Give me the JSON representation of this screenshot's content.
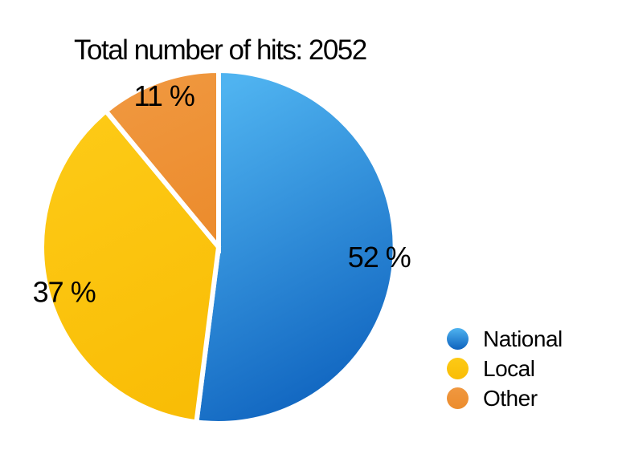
{
  "chart_data": {
    "type": "pie",
    "title": "Total number of hits: 2052",
    "total_hits": 2052,
    "unit": "%",
    "categories": [
      "National",
      "Local",
      "Other"
    ],
    "values": [
      52,
      37,
      11
    ],
    "start_angle_deg": 0,
    "direction": "clockwise",
    "legend_position": "right",
    "separator_color": "#FFFFFF",
    "text_color": "#000000",
    "slices": [
      {
        "label": "National",
        "value": 52,
        "display": "52 %",
        "color_light": "#4FB3F0",
        "color_dark": "#0E62BE"
      },
      {
        "label": "Local",
        "value": 37,
        "display": "37 %",
        "color_light": "#FDCA16",
        "color_dark": "#F9BD06"
      },
      {
        "label": "Other",
        "value": 11,
        "display": "11 %",
        "color_light": "#F09840",
        "color_dark": "#EC8C2D"
      }
    ]
  }
}
